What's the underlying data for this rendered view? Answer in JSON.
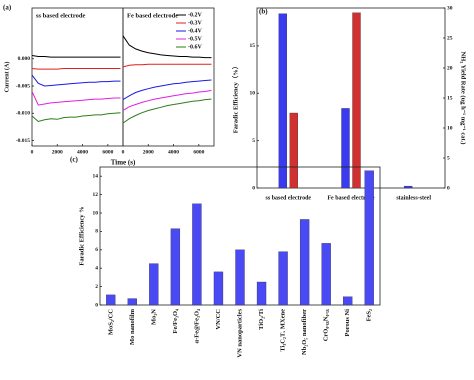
{
  "chart_data": [
    {
      "type": "line",
      "label": "(a)",
      "x_label": "Time (s)",
      "y_label": "Current (A)",
      "ylim": [
        -0.016,
        0.0093
      ],
      "yticks": [
        {
          "value": 0,
          "label": "0.000"
        },
        {
          "value": -0.005,
          "label": "-0.005"
        },
        {
          "value": -0.01,
          "label": "-0.010"
        },
        {
          "value": -0.015,
          "label": "-0.015"
        }
      ],
      "series": [
        {
          "name": "-0.2V",
          "color": "#000000"
        },
        {
          "name": "-0.3V",
          "color": "#e0201c"
        },
        {
          "name": "-0.4V",
          "color": "#1a1ae6"
        },
        {
          "name": "-0.5V",
          "color": "#e020e0"
        },
        {
          "name": "-0.6V",
          "color": "#2e7d1a"
        }
      ],
      "panels": [
        {
          "title": "ss based electrode",
          "xlim": [
            0,
            7200
          ],
          "xticks": [
            0,
            2000,
            4000,
            6000
          ],
          "x": [
            0,
            500,
            1000,
            1500,
            2000,
            2500,
            3000,
            3500,
            4000,
            4500,
            5000,
            5500,
            6000,
            6500,
            7000
          ],
          "series": [
            {
              "values": [
                0.0006,
                0.0004,
                0.0004,
                0.0003,
                0.0003,
                0.0003,
                0.0003,
                0.0003,
                0.0003,
                0.0003,
                0.0003,
                0.0003,
                0.0003,
                0.0003,
                0.0003
              ]
            },
            {
              "values": [
                -0.0018,
                -0.0019,
                -0.0019,
                -0.0019,
                -0.0019,
                -0.0018,
                -0.0018,
                -0.0018,
                -0.0018,
                -0.0018,
                -0.0018,
                -0.0018,
                -0.0018,
                -0.0018,
                -0.0018
              ]
            },
            {
              "values": [
                -0.003,
                -0.0045,
                -0.005,
                -0.0049,
                -0.0048,
                -0.0047,
                -0.0046,
                -0.0045,
                -0.0044,
                -0.0043,
                -0.0043,
                -0.0042,
                -0.0042,
                -0.0041,
                -0.0041
              ]
            },
            {
              "values": [
                -0.006,
                -0.0085,
                -0.0083,
                -0.0081,
                -0.008,
                -0.0079,
                -0.0078,
                -0.0077,
                -0.0076,
                -0.0075,
                -0.0074,
                -0.0074,
                -0.0073,
                -0.0072,
                -0.0072
              ]
            },
            {
              "values": [
                -0.0105,
                -0.0115,
                -0.0112,
                -0.011,
                -0.0111,
                -0.0108,
                -0.0107,
                -0.0107,
                -0.0105,
                -0.0104,
                -0.0103,
                -0.0103,
                -0.0101,
                -0.01,
                -0.0099
              ]
            }
          ]
        },
        {
          "title": "Fe based electrode",
          "xlim": [
            0,
            7200
          ],
          "xticks": [
            0,
            2000,
            4000,
            6000
          ],
          "x": [
            0,
            500,
            1000,
            1500,
            2000,
            2500,
            3000,
            3500,
            4000,
            4500,
            5000,
            5500,
            6000,
            6500,
            7000
          ],
          "series": [
            {
              "values": [
                0.0042,
                0.0025,
                0.0018,
                0.0014,
                0.0011,
                0.0009,
                0.0007,
                0.0006,
                0.0005,
                0.0004,
                0.0004,
                0.0003,
                0.0003,
                0.0002,
                0.0002
              ]
            },
            {
              "values": [
                -0.0015,
                -0.0012,
                -0.0011,
                -0.0011,
                -0.001,
                -0.001,
                -0.001,
                -0.001,
                -0.001,
                -0.001,
                -0.001,
                -0.001,
                -0.001,
                -0.001,
                -0.001
              ]
            },
            {
              "values": [
                -0.0075,
                -0.0068,
                -0.0062,
                -0.0058,
                -0.0055,
                -0.0052,
                -0.005,
                -0.0048,
                -0.0046,
                -0.0045,
                -0.0043,
                -0.0042,
                -0.0041,
                -0.004,
                -0.0039
              ]
            },
            {
              "values": [
                -0.0095,
                -0.0088,
                -0.0084,
                -0.008,
                -0.0077,
                -0.0074,
                -0.0072,
                -0.007,
                -0.0068,
                -0.0066,
                -0.0064,
                -0.0063,
                -0.0061,
                -0.006,
                -0.0058
              ]
            },
            {
              "values": [
                -0.0118,
                -0.011,
                -0.0104,
                -0.0099,
                -0.0095,
                -0.0092,
                -0.0089,
                -0.0086,
                -0.0084,
                -0.0082,
                -0.008,
                -0.0078,
                -0.0077,
                -0.0075,
                -0.0074
              ]
            }
          ]
        }
      ]
    },
    {
      "type": "bar",
      "label": "(b)",
      "y_label": "Faradic Efficiency（%）",
      "y2_label": "NH₃ Yield Rate (ug h⁻¹ mg⁻¹ cat.)",
      "categories": [
        "ss based electrode",
        "Fe based electrode",
        "stainless-steel"
      ],
      "ylim": [
        0,
        19
      ],
      "yticks": [
        0,
        5,
        10,
        15
      ],
      "y_color": "#2020e0",
      "y2lim": [
        0,
        30
      ],
      "y2ticks": [
        0,
        5,
        10,
        15,
        20,
        25,
        30
      ],
      "y2_color": "#d02020",
      "series": [
        {
          "color": "#3a3af0",
          "values": [
            18.4,
            8.4,
            0.2
          ]
        },
        {
          "color": "#d03030",
          "axis": "y2",
          "values": [
            12.5,
            29.2,
            null
          ]
        }
      ]
    },
    {
      "type": "bar",
      "label": "(c)",
      "y_label": "Faradic Efficiency %",
      "categories": [
        "MoS₂/CC",
        "Mo nanofilm",
        "Mo₂N",
        "Fe/Fe₃O₄",
        "α-Fe@Fe₃O₄",
        "VN/CC",
        "VN nanoparticles",
        "TiO₂/Ti",
        "Ti₃C₂Tₓ MXene",
        "Nb₂O₅ nanofiber",
        "CrO₀.₆₆N₀.₅₆",
        "Porous Ni",
        "FeS₂"
      ],
      "ylim": [
        0,
        15
      ],
      "yticks": [
        0,
        2,
        4,
        6,
        8,
        10,
        12,
        14
      ],
      "series": [
        {
          "color": "#4a4af5",
          "values": [
            1.1,
            0.7,
            4.5,
            8.3,
            11,
            3.6,
            6,
            2.5,
            5.8,
            9.3,
            6.7,
            0.9,
            14.6
          ]
        }
      ]
    }
  ]
}
